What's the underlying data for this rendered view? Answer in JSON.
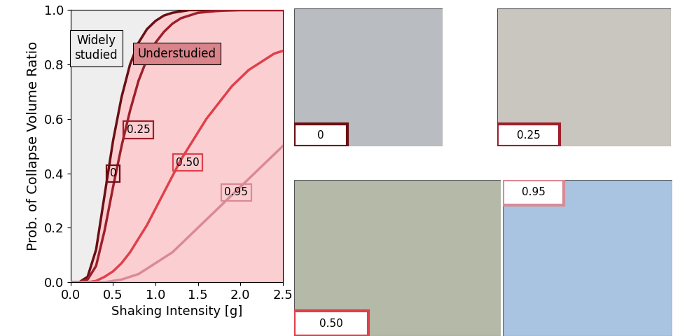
{
  "chart_data": {
    "type": "line",
    "xlabel": "Shaking Intensity [g]",
    "ylabel": "Prob. of Collapse Volume Ratio",
    "xlim": [
      0.0,
      2.5
    ],
    "ylim": [
      0.0,
      1.0
    ],
    "xticks": [
      0.0,
      0.5,
      1.0,
      1.5,
      2.0,
      2.5
    ],
    "yticks": [
      0.0,
      0.2,
      0.4,
      0.6,
      0.8,
      1.0
    ],
    "annotations": [
      "Widely\nstudied",
      "Understudied"
    ],
    "x": [
      0.0,
      0.1,
      0.2,
      0.3,
      0.4,
      0.5,
      0.6,
      0.7,
      0.8,
      0.9,
      1.0,
      1.1,
      1.2,
      1.3,
      1.4,
      1.5,
      1.6,
      1.7,
      1.8,
      1.9,
      2.0,
      2.1,
      2.2,
      2.3,
      2.4,
      2.5
    ],
    "series": [
      {
        "name": "0",
        "color": "#6b0f14",
        "values": [
          0,
          0,
          0.02,
          0.12,
          0.32,
          0.52,
          0.68,
          0.8,
          0.88,
          0.93,
          0.96,
          0.98,
          0.99,
          0.995,
          1,
          1,
          1,
          1,
          1,
          1,
          1,
          1,
          1,
          1,
          1,
          1
        ]
      },
      {
        "name": "0.25",
        "color": "#9e1f2b",
        "values": [
          0,
          0,
          0.01,
          0.06,
          0.19,
          0.35,
          0.5,
          0.63,
          0.74,
          0.82,
          0.88,
          0.92,
          0.95,
          0.97,
          0.98,
          0.99,
          0.993,
          0.996,
          0.998,
          0.999,
          1,
          1,
          1,
          1,
          1,
          1
        ]
      },
      {
        "name": "0.50",
        "color": "#e0404a",
        "values": [
          0,
          0,
          0,
          0.005,
          0.02,
          0.04,
          0.07,
          0.11,
          0.16,
          0.21,
          0.27,
          0.33,
          0.39,
          0.45,
          0.5,
          0.55,
          0.6,
          0.64,
          0.68,
          0.72,
          0.75,
          0.78,
          0.8,
          0.82,
          0.84,
          0.85
        ]
      },
      {
        "name": "0.95",
        "color": "#d98a96",
        "values": [
          0,
          0,
          0,
          0,
          0,
          0.005,
          0.01,
          0.02,
          0.03,
          0.05,
          0.07,
          0.09,
          0.11,
          0.14,
          0.17,
          0.2,
          0.23,
          0.26,
          0.29,
          0.32,
          0.35,
          0.38,
          0.41,
          0.44,
          0.47,
          0.5
        ]
      }
    ]
  },
  "photos": [
    {
      "label": "0",
      "color": "#6b0f14"
    },
    {
      "label": "0.25",
      "color": "#9e1f2b"
    },
    {
      "label": "0.50",
      "color": "#e0404a"
    },
    {
      "label": "0.95",
      "color": "#d98a96"
    }
  ]
}
